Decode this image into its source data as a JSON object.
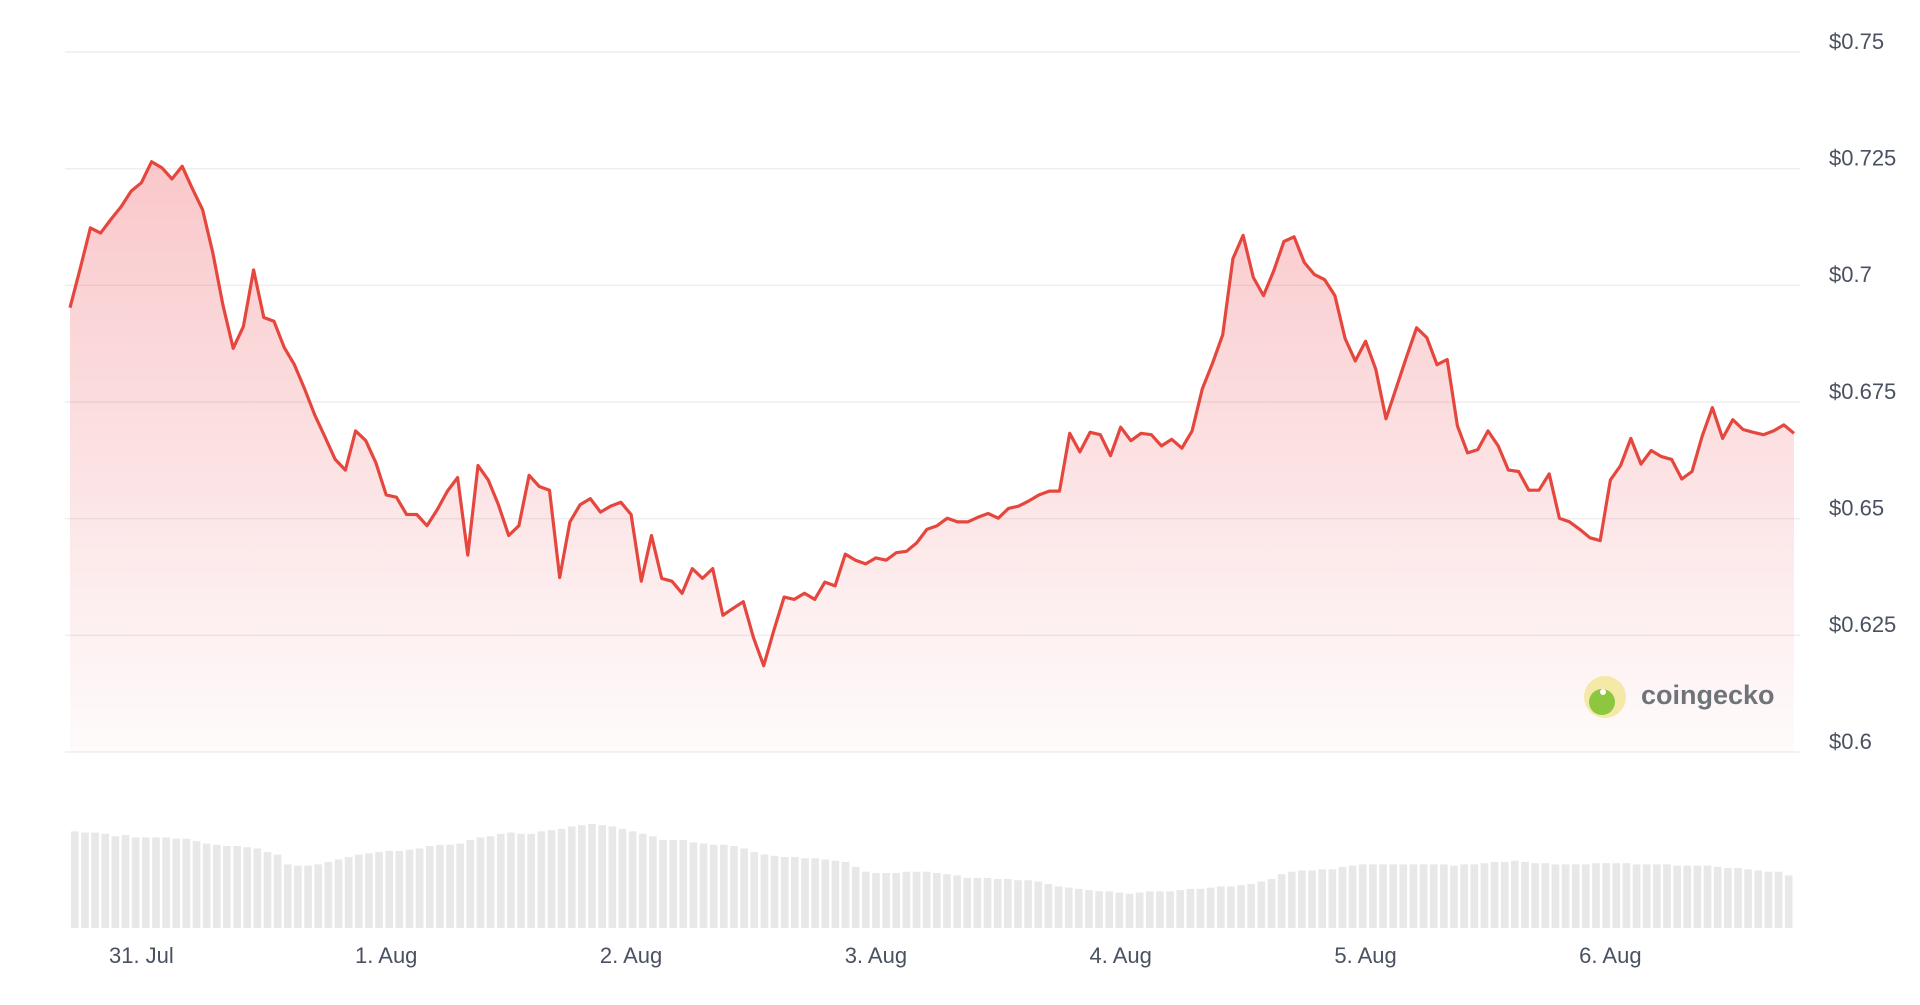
{
  "chart_data": {
    "type": "line",
    "series": [
      {
        "color": "#e5473e",
        "values": [
          0.6952,
          0.7036,
          0.7123,
          0.7112,
          0.7141,
          0.7168,
          0.7202,
          0.722,
          0.7265,
          0.7252,
          0.7228,
          0.7255,
          0.7207,
          0.7162,
          0.707,
          0.6957,
          0.6865,
          0.6912,
          0.7033,
          0.6931,
          0.6923,
          0.6867,
          0.683,
          0.6778,
          0.6722,
          0.6675,
          0.6627,
          0.6604,
          0.6688,
          0.6667,
          0.6619,
          0.6551,
          0.6546,
          0.6509,
          0.6509,
          0.6485,
          0.6519,
          0.6559,
          0.6588,
          0.6422,
          0.6614,
          0.6583,
          0.653,
          0.6464,
          0.6485,
          0.6593,
          0.6569,
          0.6561,
          0.6374,
          0.6493,
          0.653,
          0.6543,
          0.6514,
          0.6527,
          0.6535,
          0.6509,
          0.6366,
          0.6464,
          0.6372,
          0.6366,
          0.634,
          0.6393,
          0.6372,
          0.6393,
          0.6293,
          0.6308,
          0.6322,
          0.6245,
          0.6185,
          0.6261,
          0.6332,
          0.6327,
          0.634,
          0.6327,
          0.6364,
          0.6356,
          0.6424,
          0.6411,
          0.6403,
          0.6416,
          0.6411,
          0.6427,
          0.643,
          0.6448,
          0.6477,
          0.6485,
          0.6501,
          0.6493,
          0.6493,
          0.6503,
          0.6511,
          0.6501,
          0.6522,
          0.6527,
          0.6538,
          0.6551,
          0.6559,
          0.6559,
          0.6683,
          0.6643,
          0.6685,
          0.668,
          0.6635,
          0.6696,
          0.6667,
          0.6683,
          0.668,
          0.6656,
          0.667,
          0.6651,
          0.6688,
          0.6778,
          0.6833,
          0.6894,
          0.7057,
          0.7107,
          0.7017,
          0.6978,
          0.7031,
          0.7094,
          0.7104,
          0.7049,
          0.7023,
          0.7012,
          0.6978,
          0.6886,
          0.6838,
          0.688,
          0.682,
          0.6714,
          0.678,
          0.6846,
          0.6909,
          0.6888,
          0.683,
          0.6841,
          0.6699,
          0.6641,
          0.6648,
          0.6688,
          0.6656,
          0.6604,
          0.6601,
          0.6561,
          0.6561,
          0.6596,
          0.6501,
          0.6493,
          0.6477,
          0.6459,
          0.6453,
          0.6583,
          0.6614,
          0.6672,
          0.6617,
          0.6646,
          0.6633,
          0.6627,
          0.6585,
          0.6601,
          0.6677,
          0.6738,
          0.6672,
          0.6712,
          0.6691,
          0.6685,
          0.668,
          0.6688,
          0.6701,
          0.6683
        ]
      }
    ],
    "volumes": [
      79,
      78,
      78,
      77,
      75,
      76,
      74,
      74,
      74,
      74,
      73,
      73,
      71,
      69,
      68,
      67,
      67,
      66,
      65,
      62,
      60,
      52,
      51,
      51,
      52,
      54,
      56,
      58,
      60,
      61,
      62,
      63,
      63,
      64,
      65,
      67,
      68,
      68,
      69,
      72,
      74,
      75,
      77,
      78,
      77,
      77,
      79,
      80,
      81,
      83,
      84,
      85,
      84,
      83,
      81,
      79,
      77,
      75,
      72,
      72,
      72,
      70,
      69,
      68,
      68,
      67,
      65,
      62,
      60,
      59,
      58,
      58,
      57,
      57,
      56,
      55,
      54,
      50,
      46,
      45,
      45,
      45,
      46,
      46,
      46,
      45,
      44,
      43,
      41,
      41,
      41,
      40,
      40,
      39,
      39,
      38,
      36,
      34,
      33,
      32,
      31,
      30,
      30,
      29,
      28,
      29,
      30,
      30,
      30,
      31,
      32,
      32,
      33,
      34,
      34,
      35,
      36,
      38,
      40,
      44,
      46,
      47,
      47,
      48,
      48,
      50,
      51,
      52,
      52,
      52,
      52,
      52,
      52,
      52,
      52,
      52,
      51,
      52,
      52,
      53,
      54,
      54,
      55,
      54,
      53,
      53,
      52,
      52,
      52,
      52,
      53,
      53,
      53,
      53,
      52,
      52,
      52,
      52,
      51,
      51,
      51,
      51,
      50,
      49,
      49,
      48,
      47,
      46,
      46,
      43
    ],
    "volume_color": "#e8e8e8",
    "xlim": [
      0,
      169
    ],
    "xticks": [
      {
        "value": 7,
        "label": "31. Jul"
      },
      {
        "value": 31,
        "label": "1. Aug"
      },
      {
        "value": 55,
        "label": "2. Aug"
      },
      {
        "value": 79,
        "label": "3. Aug"
      },
      {
        "value": 103,
        "label": "4. Aug"
      },
      {
        "value": 127,
        "label": "5. Aug"
      },
      {
        "value": 151,
        "label": "6. Aug"
      }
    ],
    "ylim": [
      0.6,
      0.75
    ],
    "yticks": [
      {
        "value": 0.75,
        "label": "$0.75"
      },
      {
        "value": 0.725,
        "label": "$0.725"
      },
      {
        "value": 0.7,
        "label": "$0.7"
      },
      {
        "value": 0.675,
        "label": "$0.675"
      },
      {
        "value": 0.65,
        "label": "$0.65"
      },
      {
        "value": 0.625,
        "label": "$0.625"
      },
      {
        "value": 0.6,
        "label": "$0.6"
      }
    ],
    "grid": true,
    "watermark": "coingecko"
  }
}
